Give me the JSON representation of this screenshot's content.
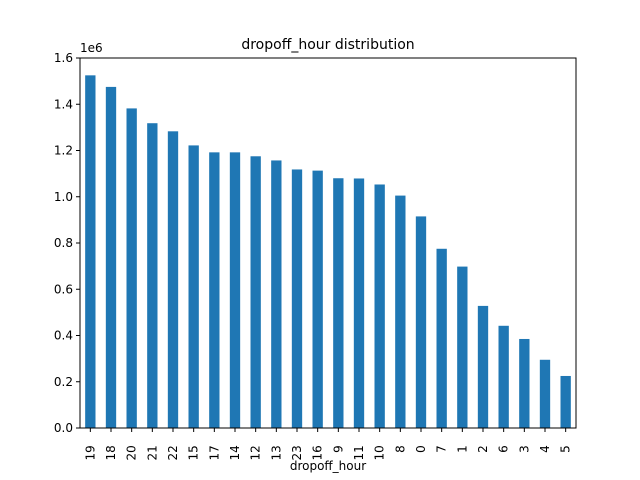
{
  "chart_data": {
    "type": "bar",
    "title": "dropoff_hour distribution",
    "xlabel": "dropoff_hour",
    "ylabel": "",
    "y_offset_label": "1e6",
    "ylim": [
      0,
      1600000
    ],
    "yticks": [
      0,
      200000,
      400000,
      600000,
      800000,
      1000000,
      1200000,
      1400000,
      1600000
    ],
    "ytick_labels": [
      "0.0",
      "0.2",
      "0.4",
      "0.6",
      "0.8",
      "1.0",
      "1.2",
      "1.4",
      "1.6"
    ],
    "categories": [
      "19",
      "18",
      "20",
      "21",
      "22",
      "15",
      "17",
      "14",
      "12",
      "13",
      "23",
      "16",
      "9",
      "11",
      "10",
      "8",
      "0",
      "7",
      "1",
      "2",
      "6",
      "3",
      "4",
      "5"
    ],
    "values": [
      1525000,
      1475000,
      1382000,
      1318000,
      1283000,
      1222000,
      1192000,
      1192000,
      1175000,
      1157000,
      1118000,
      1113000,
      1080000,
      1079000,
      1053000,
      1005000,
      915000,
      775000,
      698000,
      528000,
      442000,
      385000,
      295000,
      225000
    ],
    "bar_color": "#1f77b4",
    "grid": false,
    "legend": "none"
  }
}
